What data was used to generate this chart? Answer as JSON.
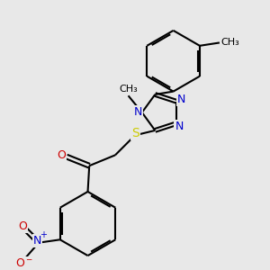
{
  "bg_color": "#e8e8e8",
  "bond_color": "#000000",
  "bond_width": 1.5,
  "N_color": "#0000cc",
  "O_color": "#cc0000",
  "S_color": "#cccc00",
  "methyl_label": "CH₃",
  "N_label": "N",
  "O_label": "O",
  "S_label": "S"
}
